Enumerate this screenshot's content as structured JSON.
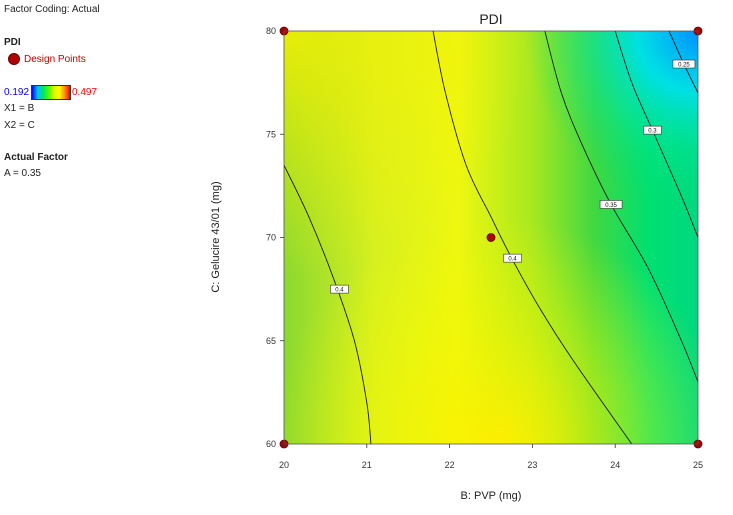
{
  "sidebar": {
    "factor_coding": "Factor Coding: Actual",
    "response_title": "PDI",
    "design_points_label": "Design Points",
    "scale_min": "0.192",
    "scale_max": "0.497",
    "x1": "X1 = B",
    "x2": "X2 = C",
    "actual_factor_title": "Actual Factor",
    "actual_factor_value": "A = 0.35"
  },
  "colors": {
    "design_point": "#b00000",
    "scale_min_text": "#0000ff",
    "scale_max_text": "#ff0000",
    "design_points_text": "#c00000"
  },
  "chart_data": {
    "type": "contour",
    "title": "PDI",
    "xlabel": "B: PVP (mg)",
    "ylabel": "C: Gelucire 43/01 (mg)",
    "xlim": [
      20,
      25
    ],
    "ylim": [
      60,
      80
    ],
    "x_ticks": [
      "20",
      "21",
      "22",
      "23",
      "24",
      "25"
    ],
    "y_ticks": [
      "60",
      "65",
      "70",
      "75",
      "80"
    ],
    "color_scale_range": [
      0.192,
      0.497
    ],
    "design_points": [
      {
        "x": 20,
        "y": 80
      },
      {
        "x": 25,
        "y": 80
      },
      {
        "x": 22.5,
        "y": 70
      },
      {
        "x": 20,
        "y": 60
      },
      {
        "x": 25,
        "y": 60
      }
    ],
    "contours": [
      {
        "level": "0.4",
        "label_at": {
          "x": 20.67,
          "y": 67.5
        },
        "points": [
          [
            20,
            73.5
          ],
          [
            20.3,
            71
          ],
          [
            20.6,
            68
          ],
          [
            20.85,
            65
          ],
          [
            21,
            62
          ],
          [
            21.05,
            60
          ]
        ]
      },
      {
        "level": "0.4",
        "label_at": {
          "x": 22.76,
          "y": 69.0
        },
        "points": [
          [
            21.8,
            80
          ],
          [
            21.95,
            77
          ],
          [
            22.2,
            73.5
          ],
          [
            22.5,
            71
          ],
          [
            22.75,
            69
          ],
          [
            23.1,
            66.5
          ],
          [
            23.5,
            64
          ],
          [
            24.2,
            60
          ]
        ]
      },
      {
        "level": "0.35",
        "label_at": {
          "x": 23.95,
          "y": 71.6
        },
        "points": [
          [
            23.15,
            80
          ],
          [
            23.35,
            77
          ],
          [
            23.6,
            74.5
          ],
          [
            23.95,
            71.6
          ],
          [
            24.4,
            68.5
          ],
          [
            24.8,
            65
          ],
          [
            25,
            63
          ]
        ]
      },
      {
        "level": "0.3",
        "label_at": {
          "x": 24.45,
          "y": 75.2
        },
        "points": [
          [
            24,
            80
          ],
          [
            24.2,
            77.5
          ],
          [
            24.45,
            75.2
          ],
          [
            24.8,
            72
          ],
          [
            25,
            70
          ]
        ]
      },
      {
        "level": "0.25",
        "label_at": {
          "x": 24.83,
          "y": 78.4
        },
        "points": [
          [
            24.65,
            80
          ],
          [
            24.83,
            78.4
          ],
          [
            25,
            77
          ]
        ]
      }
    ]
  }
}
